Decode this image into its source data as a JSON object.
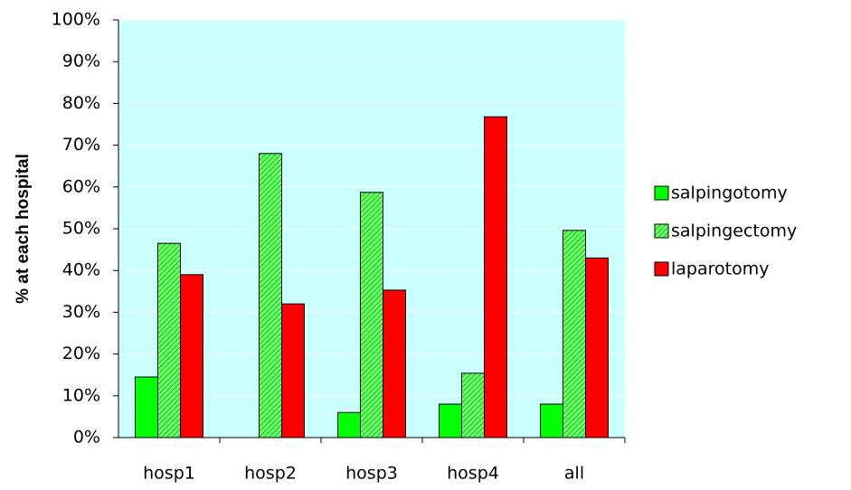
{
  "chart_data": {
    "type": "bar",
    "y_label": "% at each hospital",
    "categories": [
      "hosp1",
      "hosp2",
      "hosp3",
      "hosp4",
      "all"
    ],
    "series": [
      {
        "name": "salpingotomy",
        "color": "#00ff00",
        "values": [
          14.5,
          0,
          6,
          8,
          8
        ]
      },
      {
        "name": "salpingectomy",
        "color": "#66ff66",
        "hatch": true,
        "values": [
          46.5,
          68,
          58.7,
          15.4,
          49.6
        ]
      },
      {
        "name": "laparotomy",
        "color": "#ff0000",
        "values": [
          39,
          32,
          35.3,
          76.8,
          43
        ]
      }
    ],
    "ylim": [
      0,
      100
    ],
    "yticks": [
      {
        "value": 0,
        "label": "0%"
      },
      {
        "value": 10,
        "label": "10%"
      },
      {
        "value": 20,
        "label": "20%"
      },
      {
        "value": 30,
        "label": "30%"
      },
      {
        "value": 40,
        "label": "40%"
      },
      {
        "value": 50,
        "label": "50%"
      },
      {
        "value": 60,
        "label": "60%"
      },
      {
        "value": 70,
        "label": "70%"
      },
      {
        "value": 80,
        "label": "80%"
      },
      {
        "value": 90,
        "label": "90%"
      },
      {
        "value": 100,
        "label": "100%"
      }
    ],
    "grid": true
  }
}
